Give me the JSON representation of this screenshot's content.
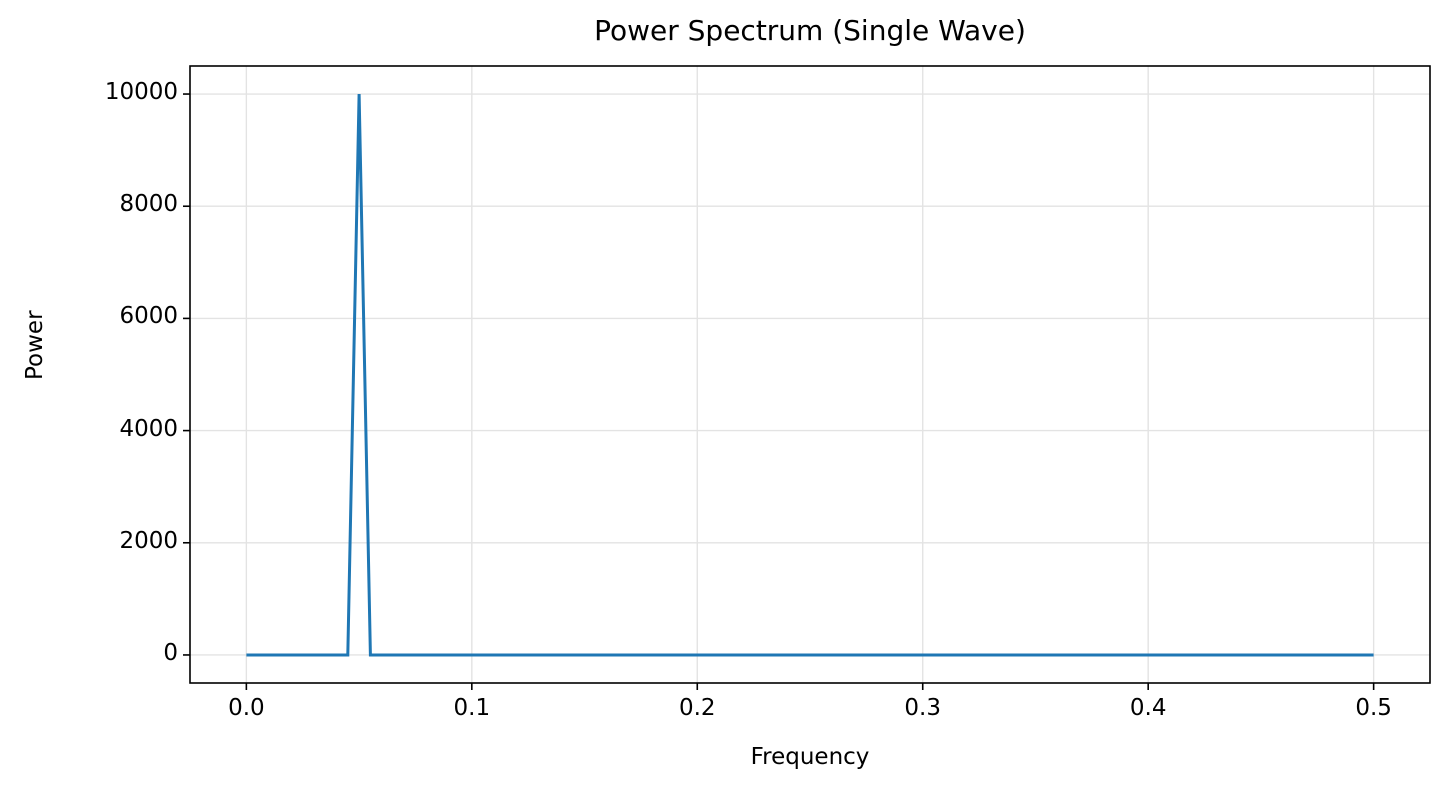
{
  "chart_data": {
    "type": "line",
    "title": "Power Spectrum (Single Wave)",
    "xlabel": "Frequency",
    "ylabel": "Power",
    "xlim": [
      -0.025,
      0.525
    ],
    "ylim": [
      -500,
      10500
    ],
    "grid": true,
    "legend": null,
    "x_ticks": [
      "0.0",
      "0.1",
      "0.2",
      "0.3",
      "0.4",
      "0.5"
    ],
    "y_ticks": [
      "0",
      "2000",
      "4000",
      "6000",
      "8000",
      "10000"
    ],
    "series": [
      {
        "name": "power",
        "color": "#1f77b4",
        "x": [
          0.0,
          0.045,
          0.05,
          0.055,
          0.1,
          0.2,
          0.3,
          0.4,
          0.5
        ],
        "y": [
          0,
          0,
          10000,
          0,
          0,
          0,
          0,
          0,
          0
        ]
      }
    ]
  },
  "labels": {
    "title": "Power Spectrum (Single Wave)",
    "xlabel": "Frequency",
    "ylabel": "Power",
    "xticks": [
      "0.0",
      "0.1",
      "0.2",
      "0.3",
      "0.4",
      "0.5"
    ],
    "yticks": [
      "0",
      "2000",
      "4000",
      "6000",
      "8000",
      "10000"
    ]
  }
}
